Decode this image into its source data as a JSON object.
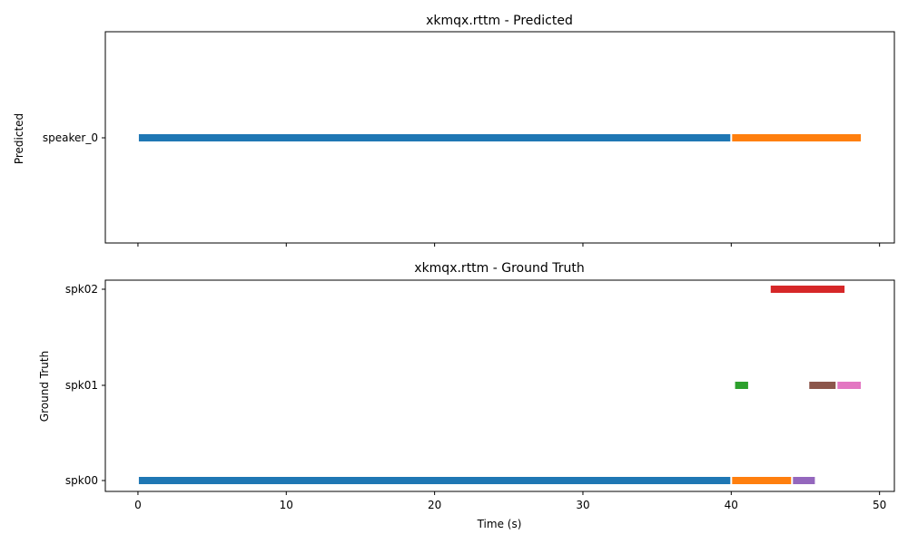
{
  "chart_data": [
    {
      "type": "timeline",
      "title": "xkmqx.rttm - Predicted",
      "ylabel": "Predicted",
      "xlabel": "",
      "xlim": [
        -2.2,
        51.0
      ],
      "categories": [
        "speaker_0"
      ],
      "segments": [
        {
          "row": "speaker_0",
          "start": 0.0,
          "end": 40.0,
          "color": "#1f77b4"
        },
        {
          "row": "speaker_0",
          "start": 40.0,
          "end": 48.8,
          "color": "#ff7f0e"
        }
      ],
      "xticks": [
        0,
        10,
        20,
        30,
        40,
        50
      ],
      "show_xtick_labels": false
    },
    {
      "type": "timeline",
      "title": "xkmqx.rttm - Ground Truth",
      "ylabel": "Ground Truth",
      "xlabel": "Time (s)",
      "xlim": [
        -2.2,
        51.0
      ],
      "categories": [
        "spk00",
        "spk01",
        "spk02"
      ],
      "segments": [
        {
          "row": "spk00",
          "start": 0.0,
          "end": 40.0,
          "color": "#1f77b4"
        },
        {
          "row": "spk00",
          "start": 40.0,
          "end": 44.1,
          "color": "#ff7f0e"
        },
        {
          "row": "spk00",
          "start": 44.1,
          "end": 45.7,
          "color": "#9467bd"
        },
        {
          "row": "spk01",
          "start": 40.2,
          "end": 41.2,
          "color": "#2ca02c"
        },
        {
          "row": "spk01",
          "start": 45.2,
          "end": 47.1,
          "color": "#8c564b"
        },
        {
          "row": "spk01",
          "start": 47.1,
          "end": 48.8,
          "color": "#e377c2"
        },
        {
          "row": "spk02",
          "start": 42.6,
          "end": 47.7,
          "color": "#d62728"
        }
      ],
      "xticks": [
        0,
        10,
        20,
        30,
        40,
        50
      ],
      "xtick_labels": [
        "0",
        "10",
        "20",
        "30",
        "40",
        "50"
      ],
      "show_xtick_labels": true
    }
  ]
}
